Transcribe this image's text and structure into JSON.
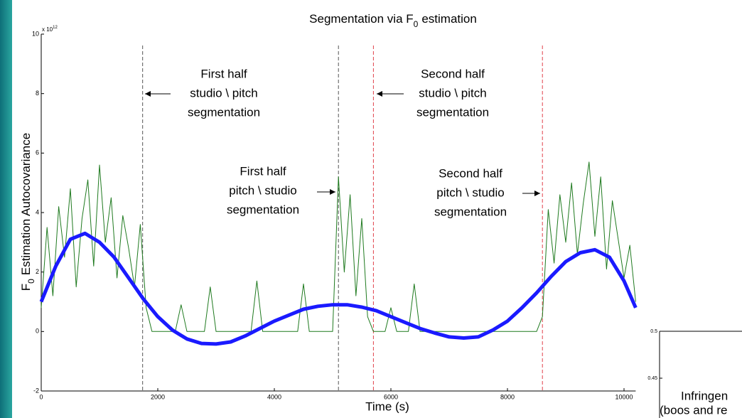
{
  "chart_data": [
    {
      "type": "line",
      "title": {
        "main": "Segmentation via F",
        "sub": "0",
        "rest": "estimation"
      },
      "y_label": {
        "main": "F",
        "sub": "0",
        "rest": "Estimation Autocovariance"
      },
      "x_label": "Time (s)",
      "y_exponent": {
        "base": "x 10",
        "power": "12"
      },
      "xlim": [
        0,
        10200
      ],
      "ylim": [
        -2,
        10
      ],
      "xticks": [
        0,
        2000,
        4000,
        6000,
        8000,
        10000
      ],
      "yticks": [
        -2,
        0,
        2,
        4,
        6,
        8,
        10
      ],
      "series": [
        {
          "color": "#1f7a1f",
          "x": [
            0,
            100,
            200,
            300,
            400,
            500,
            600,
            700,
            800,
            900,
            1000,
            1100,
            1200,
            1300,
            1400,
            1500,
            1600,
            1700,
            1800,
            1900,
            2000,
            2100,
            2200,
            2300,
            2400,
            2500,
            2600,
            2700,
            2800,
            2900,
            3000,
            3100,
            3200,
            3300,
            3400,
            3500,
            3600,
            3700,
            3800,
            3900,
            4000,
            4100,
            4200,
            4300,
            4400,
            4500,
            4600,
            4700,
            4800,
            4900,
            5000,
            5100,
            5200,
            5300,
            5400,
            5500,
            5600,
            5700,
            5800,
            5900,
            6000,
            6100,
            6200,
            6300,
            6400,
            6500,
            6600,
            6700,
            6800,
            6900,
            7000,
            7100,
            7200,
            7300,
            7400,
            7500,
            7600,
            7700,
            7800,
            7900,
            8000,
            8100,
            8200,
            8300,
            8400,
            8500,
            8600,
            8700,
            8800,
            8900,
            9000,
            9100,
            9200,
            9300,
            9400,
            9500,
            9600,
            9700,
            9800,
            9900,
            10000,
            10100,
            10200
          ],
          "values": [
            0.8,
            3.5,
            1.2,
            4.2,
            2.5,
            4.8,
            1.5,
            3.8,
            5.1,
            2.2,
            5.6,
            3.0,
            4.5,
            1.8,
            3.9,
            2.8,
            1.5,
            3.6,
            0.8,
            0,
            0,
            0,
            0,
            0,
            0.9,
            0,
            0,
            0,
            0,
            1.5,
            0,
            0,
            0,
            0,
            0,
            0,
            0,
            1.7,
            0,
            0,
            0,
            0,
            0,
            0,
            0,
            1.6,
            0,
            0,
            0,
            0,
            0,
            5.2,
            2.0,
            4.6,
            1.2,
            3.8,
            0.5,
            0,
            0,
            0,
            0.8,
            0,
            0,
            0,
            1.6,
            0,
            0,
            0,
            0,
            0,
            0,
            0,
            0,
            0,
            0,
            0,
            0,
            0,
            0,
            0,
            0,
            0,
            0,
            0,
            0,
            0,
            0.5,
            4.1,
            2.3,
            4.6,
            3.0,
            5.0,
            2.6,
            4.3,
            5.7,
            3.2,
            5.2,
            2.1,
            4.4,
            3.1,
            1.8,
            2.9,
            1.0
          ]
        },
        {
          "color": "#1a1aff",
          "x": [
            0,
            250,
            500,
            750,
            1000,
            1250,
            1500,
            1750,
            2000,
            2250,
            2500,
            2750,
            3000,
            3250,
            3500,
            3750,
            4000,
            4250,
            4500,
            4750,
            5000,
            5250,
            5500,
            5750,
            6000,
            6250,
            6500,
            6750,
            7000,
            7250,
            7500,
            7750,
            8000,
            8250,
            8500,
            8750,
            9000,
            9250,
            9500,
            9750,
            10000,
            10200
          ],
          "values": [
            1.0,
            2.2,
            3.1,
            3.3,
            3.0,
            2.5,
            1.8,
            1.1,
            0.5,
            0.05,
            -0.25,
            -0.4,
            -0.42,
            -0.35,
            -0.15,
            0.1,
            0.35,
            0.55,
            0.75,
            0.85,
            0.9,
            0.9,
            0.82,
            0.7,
            0.5,
            0.3,
            0.1,
            -0.05,
            -0.18,
            -0.22,
            -0.18,
            0.05,
            0.35,
            0.8,
            1.3,
            1.85,
            2.35,
            2.65,
            2.75,
            2.5,
            1.7,
            0.8
          ]
        }
      ],
      "annotations": [
        {
          "x": 1740,
          "color": "#555555",
          "text": [
            "First half",
            "studio \\ pitch",
            "segmentation"
          ]
        },
        {
          "x": 5100,
          "color": "#555555",
          "text": [
            "First half",
            "pitch \\ studio",
            "segmentation"
          ]
        },
        {
          "x": 5700,
          "color": "#e0404a",
          "text": [
            "Second half",
            "studio \\ pitch",
            "segmentation"
          ]
        },
        {
          "x": 8600,
          "color": "#e0404a",
          "text": [
            "Second half",
            "pitch \\ studio",
            "segmentation"
          ]
        }
      ]
    },
    {
      "type": "line",
      "ylim": [
        0.4,
        0.5
      ],
      "yticks": [
        0.5,
        0.45
      ],
      "annotations": [
        "Infringen",
        "(boos and re"
      ]
    }
  ]
}
